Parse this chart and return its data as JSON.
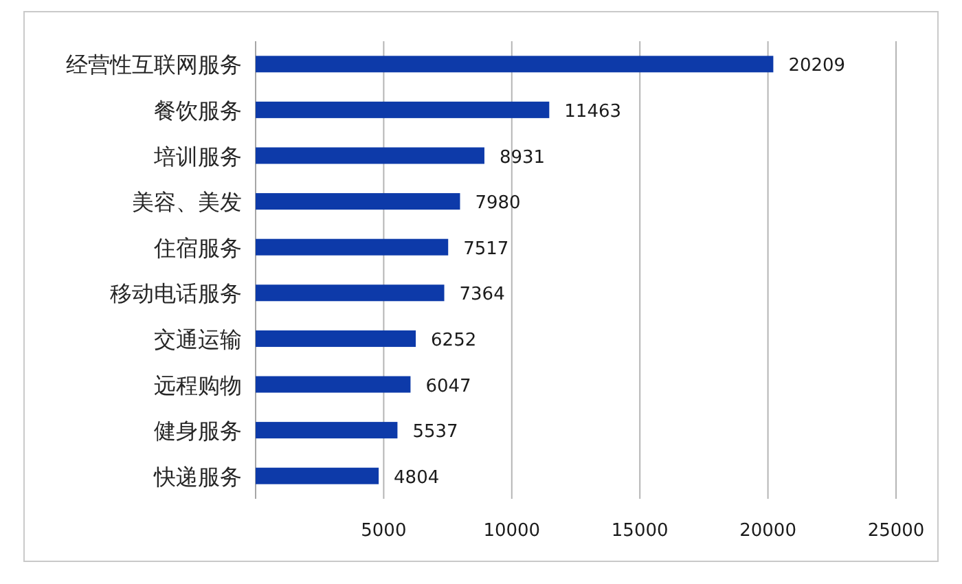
{
  "chart_data": {
    "type": "bar",
    "orientation": "horizontal",
    "categories": [
      "经营性互联网服务",
      "餐饮服务",
      "培训服务",
      "美容、美发",
      "住宿服务",
      "移动电话服务",
      "交通运输",
      "远程购物",
      "健身服务",
      "快递服务"
    ],
    "values": [
      20209,
      11463,
      8931,
      7980,
      7517,
      7364,
      6252,
      6047,
      5537,
      4804
    ],
    "color": "#0d3aa9",
    "xlim": [
      0,
      25000
    ],
    "xticks": [
      5000,
      10000,
      15000,
      20000,
      25000
    ],
    "grid": "x",
    "data_labels": true
  }
}
